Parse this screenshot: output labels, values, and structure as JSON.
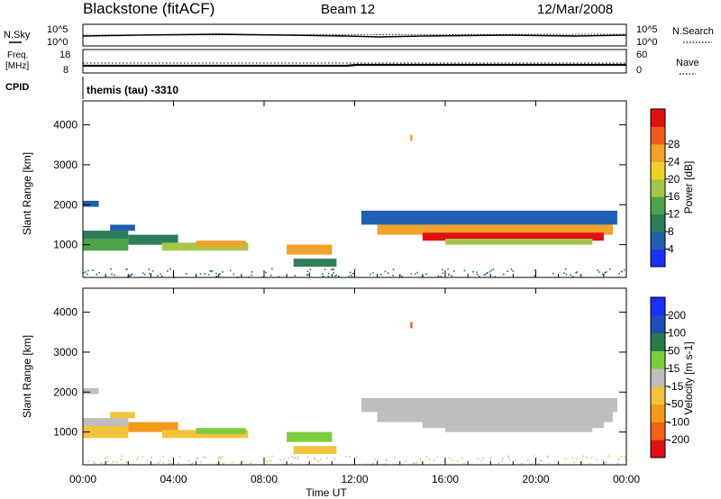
{
  "header": {
    "title": "Blackstone (fitACF)",
    "beam": "Beam 12",
    "date": "12/Mar/2008"
  },
  "aux_panels": {
    "nsky_label": "N.Sky",
    "nsearch_label": "N.Search",
    "freq_label_1": "Freq.",
    "freq_label_2": "[MHz]",
    "nave_label": "Nave",
    "cpid_label": "CPID",
    "cpid_text": "themis (tau) -3310",
    "noise_left_ticks": [
      "10^5",
      "10^0"
    ],
    "noise_right_ticks": [
      "10^5",
      "10^0"
    ],
    "freq_ticks": [
      "18",
      "8"
    ],
    "nave_ticks": [
      "60",
      "0"
    ]
  },
  "xaxis": {
    "label": "Time UT",
    "ticks": [
      "00:00",
      "04:00",
      "08:00",
      "12:00",
      "16:00",
      "20:00",
      "00:00"
    ],
    "range_hours": [
      0,
      24
    ]
  },
  "colors": {
    "power_scale": [
      "#1a2fff",
      "#1f5fb0",
      "#2e7d5a",
      "#4ea24a",
      "#a7c54a",
      "#f2d02a",
      "#f2a12a",
      "#ef5a1c",
      "#e01010"
    ],
    "velocity_scale": [
      "#1a2fff",
      "#1f4fb5",
      "#2a7a4a",
      "#7ccd3c",
      "#bebebe",
      "#f4c23a",
      "#f29a1a",
      "#ef6218",
      "#e01010"
    ]
  },
  "chart_data": [
    {
      "type": "heatmap",
      "title": "",
      "xlabel": "",
      "ylabel": "Slant Range [km]",
      "xlim": [
        0,
        24
      ],
      "ylim": [
        180,
        4600
      ],
      "yticks": [
        1000,
        2000,
        3000,
        4000
      ],
      "colorbar": {
        "label": "Power [dB]",
        "ticks": [
          "4",
          "8",
          "12",
          "16",
          "20",
          "24",
          "28"
        ]
      },
      "regions": [
        {
          "t0": 0.0,
          "t1": 0.7,
          "r0": 1950,
          "r1": 2100,
          "level": 1
        },
        {
          "t0": 0.0,
          "t1": 2.0,
          "r0": 1150,
          "r1": 1350,
          "level": 2
        },
        {
          "t0": 0.0,
          "t1": 2.0,
          "r0": 850,
          "r1": 1150,
          "level": 3
        },
        {
          "t0": 1.2,
          "t1": 2.3,
          "r0": 1350,
          "r1": 1500,
          "level": 1
        },
        {
          "t0": 2.0,
          "t1": 4.2,
          "r0": 1000,
          "r1": 1250,
          "level": 2
        },
        {
          "t0": 3.5,
          "t1": 7.3,
          "r0": 850,
          "r1": 1050,
          "level": 4
        },
        {
          "t0": 5.0,
          "t1": 7.2,
          "r0": 950,
          "r1": 1100,
          "level": 6
        },
        {
          "t0": 9.0,
          "t1": 11.0,
          "r0": 750,
          "r1": 1000,
          "level": 6
        },
        {
          "t0": 9.3,
          "t1": 11.2,
          "r0": 450,
          "r1": 650,
          "level": 2
        },
        {
          "t0": 12.3,
          "t1": 23.6,
          "r0": 1500,
          "r1": 1850,
          "level": 1
        },
        {
          "t0": 13.0,
          "t1": 23.4,
          "r0": 1250,
          "r1": 1500,
          "level": 6
        },
        {
          "t0": 15.0,
          "t1": 23.0,
          "r0": 1100,
          "r1": 1300,
          "level": 8
        },
        {
          "t0": 16.0,
          "t1": 22.5,
          "r0": 1000,
          "r1": 1150,
          "level": 4
        },
        {
          "t0": 14.45,
          "t1": 14.55,
          "r0": 3600,
          "r1": 3750,
          "level": 6
        }
      ]
    },
    {
      "type": "heatmap",
      "title": "",
      "xlabel": "Time UT",
      "ylabel": "Slant Range [km]",
      "xlim": [
        0,
        24
      ],
      "ylim": [
        180,
        4600
      ],
      "yticks": [
        1000,
        2000,
        3000,
        4000
      ],
      "colorbar": {
        "label": "Velocity [m s-1]",
        "ticks": [
          "200",
          "100",
          "50",
          "15",
          "-15",
          "-50",
          "-100",
          "-200"
        ]
      },
      "regions": [
        {
          "t0": 0.0,
          "t1": 0.7,
          "r0": 1950,
          "r1": 2100,
          "level": 4
        },
        {
          "t0": 0.0,
          "t1": 2.0,
          "r0": 1150,
          "r1": 1350,
          "level": 4
        },
        {
          "t0": 0.0,
          "t1": 2.0,
          "r0": 850,
          "r1": 1150,
          "level": 5
        },
        {
          "t0": 1.2,
          "t1": 2.3,
          "r0": 1350,
          "r1": 1500,
          "level": 5
        },
        {
          "t0": 2.0,
          "t1": 4.2,
          "r0": 1000,
          "r1": 1250,
          "level": 6
        },
        {
          "t0": 3.5,
          "t1": 7.3,
          "r0": 850,
          "r1": 1050,
          "level": 5
        },
        {
          "t0": 5.0,
          "t1": 7.2,
          "r0": 950,
          "r1": 1100,
          "level": 3
        },
        {
          "t0": 9.0,
          "t1": 11.0,
          "r0": 750,
          "r1": 1000,
          "level": 3
        },
        {
          "t0": 9.3,
          "t1": 11.2,
          "r0": 450,
          "r1": 650,
          "level": 5
        },
        {
          "t0": 12.3,
          "t1": 23.6,
          "r0": 1500,
          "r1": 1850,
          "level": 4
        },
        {
          "t0": 13.0,
          "t1": 23.4,
          "r0": 1250,
          "r1": 1500,
          "level": 4
        },
        {
          "t0": 15.0,
          "t1": 23.0,
          "r0": 1100,
          "r1": 1300,
          "level": 4
        },
        {
          "t0": 16.0,
          "t1": 22.5,
          "r0": 1000,
          "r1": 1150,
          "level": 4
        },
        {
          "t0": 14.45,
          "t1": 14.55,
          "r0": 3600,
          "r1": 3750,
          "level": 7
        }
      ]
    }
  ]
}
